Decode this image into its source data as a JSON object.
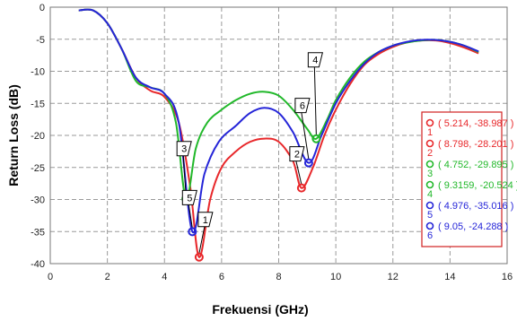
{
  "chart_data": {
    "type": "line",
    "xlabel": "Frekuensi (GHz)",
    "ylabel": "Return Loss (dB)",
    "xlim": [
      0,
      16
    ],
    "ylim": [
      -40,
      0
    ],
    "xticks": [
      0,
      2,
      4,
      6,
      8,
      10,
      12,
      14,
      16
    ],
    "yticks": [
      0,
      -5,
      -10,
      -15,
      -20,
      -25,
      -30,
      -35,
      -40
    ],
    "grid": true,
    "legend_position": "right",
    "series": [
      {
        "color": "#e8282b",
        "points": [
          [
            1,
            -0.5
          ],
          [
            1.5,
            -0.5
          ],
          [
            2,
            -2.5
          ],
          [
            2.5,
            -6.5
          ],
          [
            3,
            -11
          ],
          [
            3.5,
            -13
          ],
          [
            4,
            -14
          ],
          [
            4.5,
            -18
          ],
          [
            4.9,
            -28
          ],
          [
            5.214,
            -38.987
          ],
          [
            5.6,
            -30
          ],
          [
            6,
            -25
          ],
          [
            6.5,
            -22.5
          ],
          [
            7,
            -21
          ],
          [
            7.5,
            -20.5
          ],
          [
            8,
            -21
          ],
          [
            8.5,
            -24
          ],
          [
            8.798,
            -28.201
          ],
          [
            9.2,
            -25
          ],
          [
            9.6,
            -20
          ],
          [
            10,
            -16
          ],
          [
            10.5,
            -12
          ],
          [
            11,
            -9
          ],
          [
            11.5,
            -7.3
          ],
          [
            12,
            -6.2
          ],
          [
            12.5,
            -5.5
          ],
          [
            13,
            -5.2
          ],
          [
            13.5,
            -5.2
          ],
          [
            14,
            -5.6
          ],
          [
            14.5,
            -6.3
          ],
          [
            15,
            -7.2
          ]
        ]
      },
      {
        "color": "#21b82a",
        "points": [
          [
            1,
            -0.5
          ],
          [
            1.5,
            -0.5
          ],
          [
            2,
            -2.5
          ],
          [
            2.5,
            -6.5
          ],
          [
            3,
            -11.5
          ],
          [
            3.5,
            -12.5
          ],
          [
            4,
            -13.5
          ],
          [
            4.4,
            -18
          ],
          [
            4.752,
            -29.895
          ],
          [
            5.1,
            -22
          ],
          [
            5.5,
            -18
          ],
          [
            6,
            -16
          ],
          [
            6.5,
            -14.5
          ],
          [
            7,
            -13.5
          ],
          [
            7.5,
            -13.2
          ],
          [
            8,
            -13.8
          ],
          [
            8.5,
            -16
          ],
          [
            9,
            -19
          ],
          [
            9.3159,
            -20.524
          ],
          [
            9.7,
            -17.5
          ],
          [
            10,
            -14.5
          ],
          [
            10.5,
            -11
          ],
          [
            11,
            -8.5
          ],
          [
            11.5,
            -7
          ],
          [
            12,
            -6
          ],
          [
            12.5,
            -5.5
          ],
          [
            13,
            -5.2
          ],
          [
            13.5,
            -5.1
          ],
          [
            14,
            -5.4
          ],
          [
            14.5,
            -6
          ],
          [
            15,
            -7
          ]
        ]
      },
      {
        "color": "#2525d8",
        "points": [
          [
            1,
            -0.5
          ],
          [
            1.5,
            -0.5
          ],
          [
            2,
            -2.5
          ],
          [
            2.5,
            -6.5
          ],
          [
            3,
            -11
          ],
          [
            3.5,
            -12.5
          ],
          [
            4,
            -13.5
          ],
          [
            4.5,
            -18
          ],
          [
            4.976,
            -35.016
          ],
          [
            5.4,
            -26
          ],
          [
            5.9,
            -21
          ],
          [
            6.5,
            -18.5
          ],
          [
            7,
            -16.5
          ],
          [
            7.5,
            -15.7
          ],
          [
            8,
            -16.5
          ],
          [
            8.5,
            -19.5
          ],
          [
            9.05,
            -24.288
          ],
          [
            9.5,
            -20
          ],
          [
            10,
            -15
          ],
          [
            10.5,
            -11.5
          ],
          [
            11,
            -8.8
          ],
          [
            11.5,
            -7
          ],
          [
            12,
            -6
          ],
          [
            12.5,
            -5.4
          ],
          [
            13,
            -5.1
          ],
          [
            13.5,
            -5.1
          ],
          [
            14,
            -5.4
          ],
          [
            14.5,
            -6
          ],
          [
            15,
            -6.9
          ]
        ]
      }
    ],
    "markers": [
      {
        "label": "1",
        "x": 5.214,
        "y": -38.987,
        "color": "#e8282b"
      },
      {
        "label": "2",
        "x": 8.798,
        "y": -28.201,
        "color": "#e8282b"
      },
      {
        "label": "3",
        "x": 4.752,
        "y": -29.895,
        "color": "#21b82a"
      },
      {
        "label": "4",
        "x": 9.3159,
        "y": -20.524,
        "color": "#21b82a"
      },
      {
        "label": "5",
        "x": 4.976,
        "y": -35.016,
        "color": "#2525d8"
      },
      {
        "label": "6",
        "x": 9.05,
        "y": -24.288,
        "color": "#2525d8"
      }
    ],
    "legend": [
      {
        "num": "1",
        "text": "( 5.214, -38.987 )",
        "color": "#e8282b"
      },
      {
        "num": "2",
        "text": "( 8.798, -28.201 )",
        "color": "#e8282b"
      },
      {
        "num": "3",
        "text": "( 4.752, -29.895 )",
        "color": "#21b82a"
      },
      {
        "num": "4",
        "text": "( 9.3159, -20.524 )",
        "color": "#21b82a"
      },
      {
        "num": "5",
        "text": "( 4.976, -35.016 )",
        "color": "#2525d8"
      },
      {
        "num": "6",
        "text": "( 9.05, -24.288 )",
        "color": "#2525d8"
      }
    ]
  }
}
